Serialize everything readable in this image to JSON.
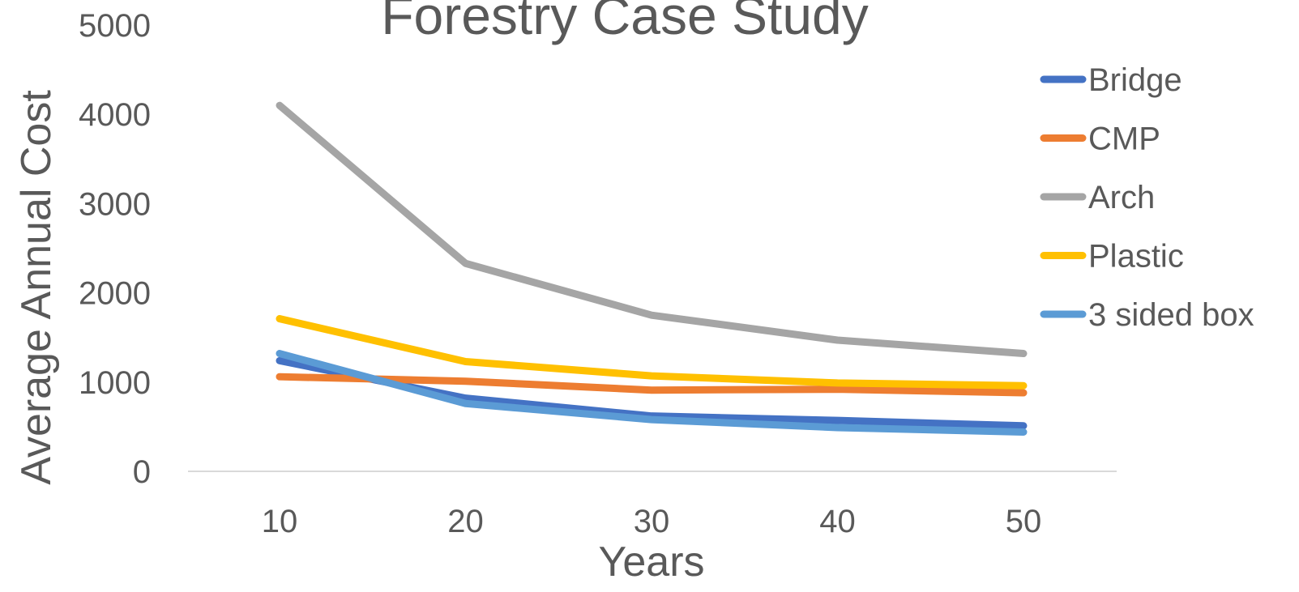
{
  "chart_data": {
    "type": "line",
    "title": "Forestry Case Study",
    "xlabel": "Years",
    "ylabel": "Average Annual Cost",
    "categories": [
      "10",
      "20",
      "30",
      "40",
      "50"
    ],
    "ylim": [
      0,
      5000
    ],
    "yticks": [
      "0",
      "1000",
      "2000",
      "3000",
      "4000",
      "5000"
    ],
    "grid": false,
    "legend": "right",
    "series": [
      {
        "name": "Bridge",
        "color": "#4472C4",
        "values": [
          1240,
          820,
          620,
          570,
          510
        ]
      },
      {
        "name": "CMP",
        "color": "#ED7D31",
        "values": [
          1060,
          1010,
          910,
          920,
          880
        ]
      },
      {
        "name": "Arch",
        "color": "#A5A5A5",
        "values": [
          4100,
          2330,
          1750,
          1470,
          1320
        ]
      },
      {
        "name": "Plastic",
        "color": "#FFC000",
        "values": [
          1710,
          1230,
          1070,
          990,
          960
        ]
      },
      {
        "name": "3 sided box",
        "color": "#5B9BD5",
        "values": [
          1320,
          760,
          580,
          490,
          440
        ]
      }
    ]
  }
}
